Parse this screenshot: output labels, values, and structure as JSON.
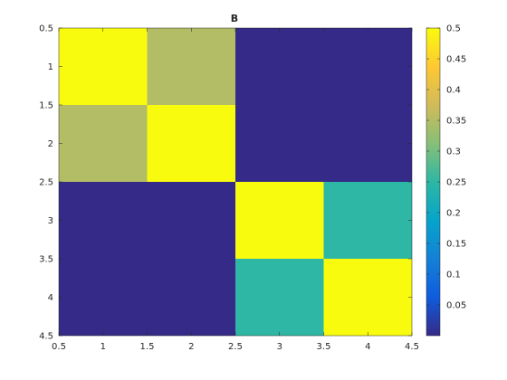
{
  "chart_data": {
    "type": "heatmap",
    "title": "B",
    "xlabel": "",
    "ylabel": "",
    "xlim": [
      0.5,
      4.5
    ],
    "ylim": [
      4.5,
      0.5
    ],
    "y_direction": "reversed",
    "x_ticks": [
      "0.5",
      "1",
      "1.5",
      "2",
      "2.5",
      "3",
      "3.5",
      "4",
      "4.5"
    ],
    "y_ticks": [
      "0.5",
      "1",
      "1.5",
      "2",
      "2.5",
      "3",
      "3.5",
      "4",
      "4.5"
    ],
    "matrix": [
      [
        0.5,
        0.35,
        0.0,
        0.0
      ],
      [
        0.35,
        0.5,
        0.0,
        0.0
      ],
      [
        0.0,
        0.0,
        0.5,
        0.25
      ],
      [
        0.0,
        0.0,
        0.25,
        0.5
      ]
    ],
    "colormap": "parula",
    "colormap_stops": [
      "#352a87",
      "#0f5cdd",
      "#1481d6",
      "#06a4ca",
      "#2eb7a4",
      "#87bf77",
      "#d1bb59",
      "#fec832",
      "#f9fb0e"
    ],
    "colorbar": {
      "range": [
        0.0,
        0.5
      ],
      "ticks": [
        "0.05",
        "0.1",
        "0.15",
        "0.2",
        "0.25",
        "0.3",
        "0.35",
        "0.4",
        "0.45",
        "0.5"
      ],
      "position": "right"
    },
    "grid": false
  }
}
